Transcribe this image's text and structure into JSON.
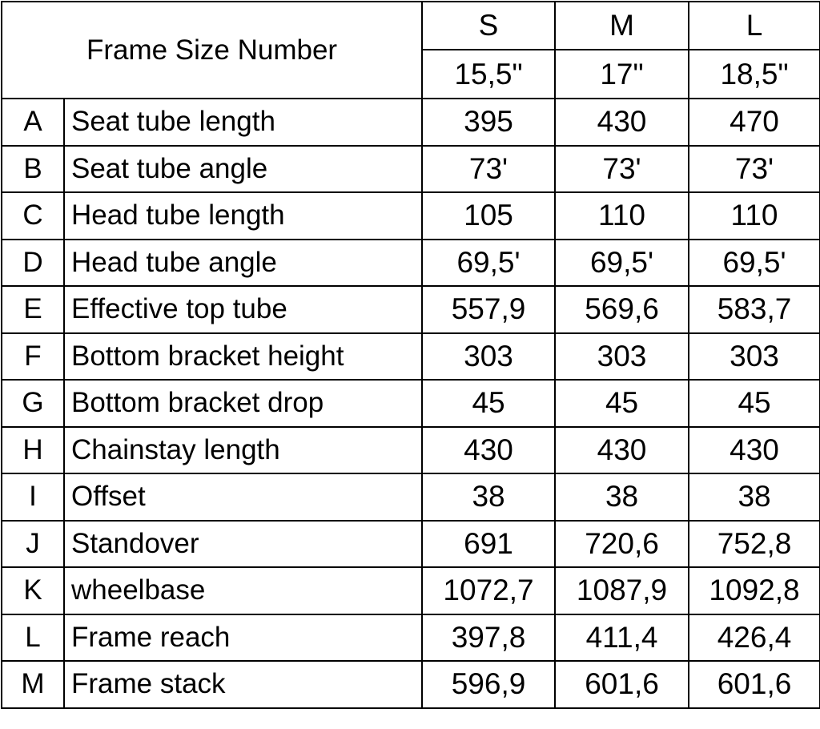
{
  "header": {
    "title": "Frame Size Number",
    "sizes": [
      "S",
      "M",
      "L"
    ],
    "inches": [
      "15,5\"",
      "17\"",
      "18,5\""
    ]
  },
  "rows": [
    {
      "letter": "A",
      "label": "Seat tube length",
      "values": [
        "395",
        "430",
        "470"
      ]
    },
    {
      "letter": "B",
      "label": "Seat tube angle",
      "values": [
        "73'",
        "73'",
        "73'"
      ]
    },
    {
      "letter": "C",
      "label": "Head tube length",
      "values": [
        "105",
        "110",
        "110"
      ]
    },
    {
      "letter": "D",
      "label": "Head tube angle",
      "values": [
        "69,5'",
        "69,5'",
        "69,5'"
      ]
    },
    {
      "letter": "E",
      "label": "Effective top tube",
      "values": [
        "557,9",
        "569,6",
        "583,7"
      ]
    },
    {
      "letter": "F",
      "label": "Bottom bracket height",
      "values": [
        "303",
        "303",
        "303"
      ]
    },
    {
      "letter": "G",
      "label": "Bottom bracket drop",
      "values": [
        "45",
        "45",
        "45"
      ]
    },
    {
      "letter": "H",
      "label": "Chainstay length",
      "values": [
        "430",
        "430",
        "430"
      ]
    },
    {
      "letter": "I",
      "label": "Offset",
      "values": [
        "38",
        "38",
        "38"
      ]
    },
    {
      "letter": "J",
      "label": "Standover",
      "values": [
        "691",
        "720,6",
        "752,8"
      ]
    },
    {
      "letter": "K",
      "label": "wheelbase",
      "values": [
        "1072,7",
        "1087,9",
        "1092,8"
      ]
    },
    {
      "letter": "L",
      "label": "Frame reach",
      "values": [
        "397,8",
        "411,4",
        "426,4"
      ]
    },
    {
      "letter": "M",
      "label": "Frame stack",
      "values": [
        "596,9",
        "601,6",
        "601,6"
      ]
    }
  ]
}
